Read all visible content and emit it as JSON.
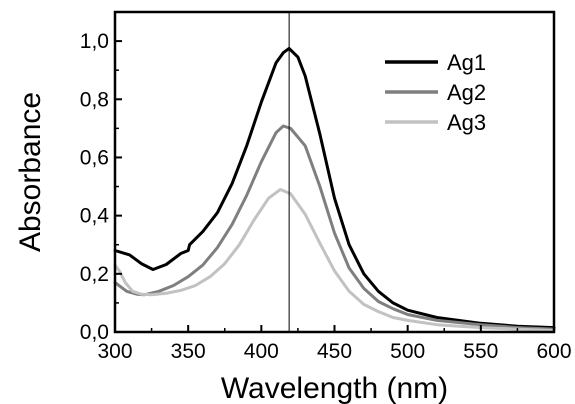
{
  "chart_data": {
    "type": "line",
    "title": "",
    "xlabel": "Wavelength (nm)",
    "ylabel": "Absorbance",
    "xlim": [
      300,
      600
    ],
    "ylim": [
      0.0,
      1.1
    ],
    "x_ticks": [
      300,
      350,
      400,
      450,
      500,
      550,
      600
    ],
    "x_tick_labels": [
      "300",
      "350",
      "400",
      "450",
      "500",
      "550",
      "600"
    ],
    "y_ticks": [
      0.0,
      0.2,
      0.4,
      0.6,
      0.8,
      1.0
    ],
    "y_tick_labels": [
      "0,0",
      "0,2",
      "0,4",
      "0,6",
      "0,8",
      "1,0"
    ],
    "grid": false,
    "legend_position": "top-right",
    "reference_line": {
      "x": 419
    },
    "series": [
      {
        "name": "Ag1",
        "color": "#000000",
        "x": [
          300,
          310,
          318,
          326,
          335,
          345,
          350,
          351,
          360,
          370,
          380,
          390,
          400,
          410,
          415,
          419,
          425,
          430,
          440,
          450,
          460,
          470,
          480,
          490,
          500,
          520,
          550,
          575,
          600
        ],
        "values": [
          0.28,
          0.265,
          0.235,
          0.215,
          0.232,
          0.27,
          0.28,
          0.3,
          0.345,
          0.41,
          0.51,
          0.64,
          0.79,
          0.925,
          0.96,
          0.975,
          0.945,
          0.88,
          0.68,
          0.46,
          0.3,
          0.2,
          0.14,
          0.1,
          0.075,
          0.05,
          0.03,
          0.02,
          0.015
        ]
      },
      {
        "name": "Ag2",
        "color": "#7f7f7f",
        "x": [
          300,
          308,
          315,
          320,
          330,
          340,
          350,
          360,
          370,
          380,
          390,
          400,
          410,
          415,
          420,
          430,
          440,
          450,
          460,
          470,
          480,
          490,
          500,
          520,
          550,
          575,
          600
        ],
        "values": [
          0.17,
          0.14,
          0.13,
          0.128,
          0.14,
          0.16,
          0.19,
          0.23,
          0.29,
          0.37,
          0.47,
          0.585,
          0.685,
          0.708,
          0.7,
          0.64,
          0.5,
          0.34,
          0.22,
          0.15,
          0.105,
          0.08,
          0.06,
          0.04,
          0.025,
          0.015,
          0.01
        ]
      },
      {
        "name": "Ag3",
        "color": "#c2c2c2",
        "x": [
          300,
          303,
          307,
          312,
          318,
          325,
          335,
          345,
          355,
          365,
          375,
          385,
          395,
          405,
          413,
          420,
          430,
          440,
          450,
          460,
          470,
          480,
          490,
          500,
          520,
          550,
          575,
          600
        ],
        "values": [
          0.23,
          0.21,
          0.17,
          0.14,
          0.13,
          0.128,
          0.133,
          0.143,
          0.16,
          0.19,
          0.235,
          0.3,
          0.385,
          0.46,
          0.49,
          0.475,
          0.405,
          0.305,
          0.21,
          0.14,
          0.095,
          0.07,
          0.05,
          0.04,
          0.025,
          0.015,
          0.01,
          0.005
        ]
      }
    ]
  }
}
